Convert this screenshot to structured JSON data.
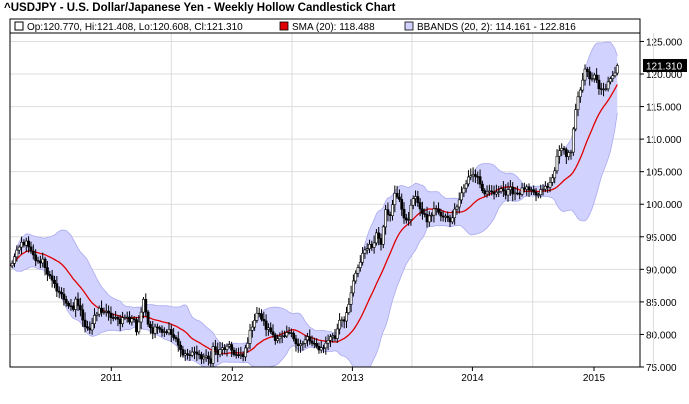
{
  "chart_data": {
    "type": "candlestick",
    "title": "^USDJPY - U.S. Dollar/Japanese Yen - Weekly Hollow Candlestick Chart",
    "legend": {
      "ohlc": "Op:120.770, Hi:121.408, Lo:120.608, Cl:121.310",
      "sma": "SMA (20): 118.488",
      "bbands": "BBANDS (20, 2): 114.161 - 122.816"
    },
    "last_value_label": "121.310",
    "x_ticks": [
      "2011",
      "2012",
      "2013",
      "2014",
      "2015"
    ],
    "y_ticks": [
      "75.000",
      "80.000",
      "85.000",
      "90.000",
      "95.000",
      "100.000",
      "105.000",
      "110.000",
      "115.000",
      "120.000",
      "125.000"
    ],
    "ylim": [
      75,
      126.3
    ],
    "y_axis_position": "right",
    "grid": true,
    "legend_placement": "top",
    "colors": {
      "sma": "#e00000",
      "bbands_fill": "#d2d2ff",
      "bbands_line": "#aaaaf0",
      "candle": "#000000",
      "grid": "#dddddd",
      "last_label_bg": "#000000"
    },
    "close_points": [
      [
        "2010-03-05",
        90.4
      ],
      [
        "2010-03-26",
        92.5
      ],
      [
        "2010-04-09",
        94.0
      ],
      [
        "2010-04-23",
        94.0
      ],
      [
        "2010-05-07",
        92.5
      ],
      [
        "2010-05-14",
        92.0
      ],
      [
        "2010-05-28",
        91.0
      ],
      [
        "2010-06-11",
        91.5
      ],
      [
        "2010-06-25",
        89.5
      ],
      [
        "2010-07-09",
        88.0
      ],
      [
        "2010-07-30",
        86.5
      ],
      [
        "2010-08-13",
        85.5
      ],
      [
        "2010-08-27",
        84.5
      ],
      [
        "2010-09-10",
        83.5
      ],
      [
        "2010-09-17",
        85.5
      ],
      [
        "2010-10-01",
        83.5
      ],
      [
        "2010-10-15",
        81.5
      ],
      [
        "2010-10-29",
        80.8
      ],
      [
        "2010-11-12",
        82.5
      ],
      [
        "2010-11-26",
        83.8
      ],
      [
        "2010-12-10",
        83.5
      ],
      [
        "2010-12-24",
        83.0
      ],
      [
        "2011-01-07",
        82.5
      ],
      [
        "2011-01-28",
        82.0
      ],
      [
        "2011-02-11",
        83.0
      ],
      [
        "2011-02-25",
        82.0
      ],
      [
        "2011-03-11",
        82.5
      ],
      [
        "2011-03-18",
        80.5
      ],
      [
        "2011-04-01",
        83.5
      ],
      [
        "2011-04-08",
        85.0
      ],
      [
        "2011-04-22",
        82.0
      ],
      [
        "2011-05-06",
        80.5
      ],
      [
        "2011-05-20",
        81.5
      ],
      [
        "2011-06-03",
        80.5
      ],
      [
        "2011-06-24",
        80.5
      ],
      [
        "2011-07-15",
        79.0
      ],
      [
        "2011-07-29",
        77.5
      ],
      [
        "2011-08-12",
        77.0
      ],
      [
        "2011-08-26",
        76.8
      ],
      [
        "2011-09-09",
        77.5
      ],
      [
        "2011-09-23",
        76.5
      ],
      [
        "2011-10-07",
        76.5
      ],
      [
        "2011-10-28",
        76.0
      ],
      [
        "2011-11-04",
        78.0
      ],
      [
        "2011-11-18",
        77.0
      ],
      [
        "2011-12-02",
        77.8
      ],
      [
        "2011-12-23",
        78.0
      ],
      [
        "2012-01-13",
        76.8
      ],
      [
        "2012-02-03",
        76.5
      ],
      [
        "2012-02-17",
        79.0
      ],
      [
        "2012-03-02",
        81.5
      ],
      [
        "2012-03-16",
        83.3
      ],
      [
        "2012-03-30",
        82.5
      ],
      [
        "2012-04-13",
        81.0
      ],
      [
        "2012-04-27",
        80.5
      ],
      [
        "2012-05-11",
        79.5
      ],
      [
        "2012-05-25",
        79.5
      ],
      [
        "2012-06-08",
        79.5
      ],
      [
        "2012-06-22",
        80.2
      ],
      [
        "2012-07-06",
        79.5
      ],
      [
        "2012-07-20",
        78.5
      ],
      [
        "2012-08-03",
        78.5
      ],
      [
        "2012-08-17",
        79.5
      ],
      [
        "2012-08-31",
        78.5
      ],
      [
        "2012-09-14",
        78.0
      ],
      [
        "2012-09-28",
        77.9
      ],
      [
        "2012-10-12",
        78.5
      ],
      [
        "2012-10-26",
        79.8
      ],
      [
        "2012-11-09",
        79.5
      ],
      [
        "2012-11-23",
        82.4
      ],
      [
        "2012-12-07",
        82.4
      ],
      [
        "2012-12-21",
        84.2
      ],
      [
        "2013-01-04",
        88.2
      ],
      [
        "2013-01-18",
        90.0
      ],
      [
        "2013-02-01",
        92.5
      ],
      [
        "2013-02-15",
        93.5
      ],
      [
        "2013-03-01",
        93.5
      ],
      [
        "2013-03-15",
        95.5
      ],
      [
        "2013-03-29",
        94.2
      ],
      [
        "2013-04-12",
        99.5
      ],
      [
        "2013-04-26",
        98.0
      ],
      [
        "2013-05-10",
        101.5
      ],
      [
        "2013-05-24",
        101.0
      ],
      [
        "2013-06-07",
        97.5
      ],
      [
        "2013-06-21",
        98.0
      ],
      [
        "2013-07-05",
        101.0
      ],
      [
        "2013-07-19",
        100.5
      ],
      [
        "2013-08-02",
        98.5
      ],
      [
        "2013-08-16",
        97.5
      ],
      [
        "2013-08-30",
        98.5
      ],
      [
        "2013-09-13",
        99.5
      ],
      [
        "2013-09-27",
        98.0
      ],
      [
        "2013-10-11",
        98.0
      ],
      [
        "2013-10-25",
        97.5
      ],
      [
        "2013-11-08",
        99.0
      ],
      [
        "2013-11-22",
        101.0
      ],
      [
        "2013-12-06",
        102.5
      ],
      [
        "2013-12-20",
        104.0
      ],
      [
        "2014-01-03",
        104.5
      ],
      [
        "2014-01-17",
        104.3
      ],
      [
        "2014-01-31",
        102.0
      ],
      [
        "2014-02-14",
        101.5
      ],
      [
        "2014-02-28",
        101.8
      ],
      [
        "2014-03-14",
        101.5
      ],
      [
        "2014-03-28",
        102.8
      ],
      [
        "2014-04-11",
        101.5
      ],
      [
        "2014-04-25",
        102.2
      ],
      [
        "2014-05-09",
        101.8
      ],
      [
        "2014-05-23",
        101.8
      ],
      [
        "2014-06-06",
        102.5
      ],
      [
        "2014-06-20",
        102.0
      ],
      [
        "2014-07-04",
        101.6
      ],
      [
        "2014-07-18",
        101.3
      ],
      [
        "2014-08-01",
        102.5
      ],
      [
        "2014-08-15",
        102.5
      ],
      [
        "2014-08-29",
        104.0
      ],
      [
        "2014-09-12",
        107.0
      ],
      [
        "2014-09-26",
        109.0
      ],
      [
        "2014-10-10",
        107.5
      ],
      [
        "2014-10-24",
        107.8
      ],
      [
        "2014-11-07",
        114.5
      ],
      [
        "2014-11-21",
        117.8
      ],
      [
        "2014-12-05",
        121.0
      ],
      [
        "2014-12-19",
        119.0
      ],
      [
        "2015-01-02",
        120.0
      ],
      [
        "2015-01-16",
        117.5
      ],
      [
        "2015-01-30",
        117.5
      ],
      [
        "2015-02-13",
        118.5
      ],
      [
        "2015-02-27",
        119.5
      ],
      [
        "2015-03-13",
        121.3
      ]
    ]
  }
}
